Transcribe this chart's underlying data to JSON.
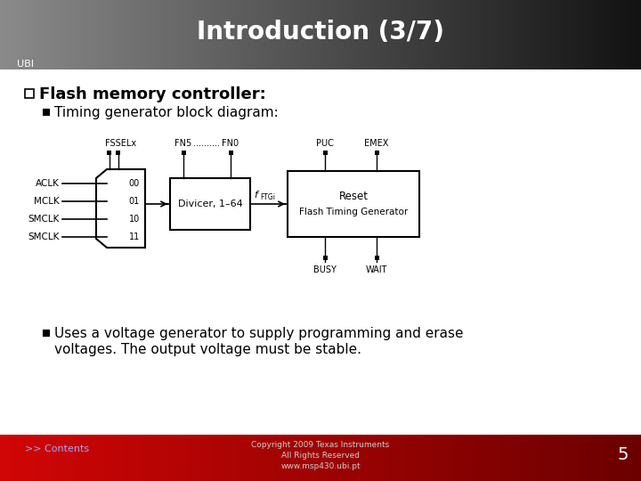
{
  "title": "Introduction (3/7)",
  "header_text_color": "#ffffff",
  "slide_bg": "#ffffff",
  "footer_link": ">> Contents",
  "footer_page": "5",
  "footer_copyright1": "Copyright 2009 Texas Instruments",
  "footer_copyright2": "All Rights Reserved",
  "footer_url": "www.msp430.ubi.pt",
  "bullet1_title": "Flash memory controller:",
  "bullet1_sub1": "Timing generator block diagram:",
  "bullet1_sub2_line1": "Uses a voltage generator to supply programming and erase",
  "bullet1_sub2_line2": "voltages. The output voltage must be stable.",
  "ubi_text": "UBI",
  "mux_inputs": [
    "ACLK",
    "MCLK",
    "SMCLK",
    "SMCLK"
  ],
  "mux_codes": [
    "00",
    "01",
    "10",
    "11"
  ],
  "divider_label": "Divicer, 1–64",
  "ftg_label1": "Reset",
  "ftg_label2": "Flash Timing Generator",
  "fssel_label": "FSSELx",
  "fn5_label": "FN5",
  "fn0_label": "FN0",
  "fn_dots": "..........",
  "puc_label": "PUC",
  "emex_label": "EMEX",
  "busy_label": "BUSY",
  "wait_label": "WAIT",
  "ftgi_label_main": "f",
  "ftgi_label_sub": "FTGi"
}
